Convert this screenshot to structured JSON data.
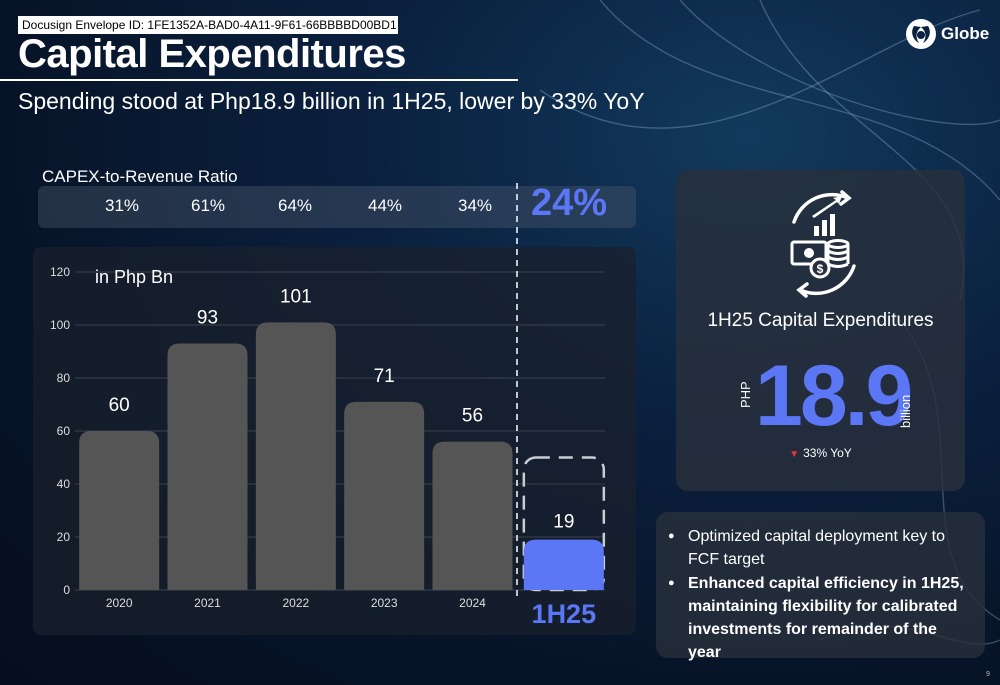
{
  "envelope_id": "Docusign Envelope ID: 1FE1352A-BAD0-4A11-9F61-66BBBBD00BD1",
  "title": "Capital Expenditures",
  "subtitle": "Spending stood at Php18.9 billion in 1H25, lower by 33% YoY",
  "logo": {
    "text": "Globe",
    "icon": "globe-logo-icon"
  },
  "ratio": {
    "title": "CAPEX-to-Revenue Ratio",
    "values": [
      "31%",
      "61%",
      "64%",
      "44%",
      "34%"
    ],
    "highlight": "24%"
  },
  "chart_data": {
    "type": "bar",
    "unit_label": "in Php Bn",
    "categories": [
      "2020",
      "2021",
      "2022",
      "2023",
      "2024",
      "1H25"
    ],
    "values": [
      60,
      93,
      101,
      71,
      56,
      19
    ],
    "highlight_category": "1H25",
    "ylim": [
      0,
      120
    ],
    "yticks": [
      0,
      20,
      40,
      60,
      80,
      100,
      120
    ],
    "grid": true,
    "colors": {
      "bar": "#555555",
      "highlight": "#5b77f5",
      "grid": "#3a4250",
      "dashed": "#c8ccd2"
    }
  },
  "kpi": {
    "icon": "capex-cash-growth-icon",
    "label": "1H25 Capital Expenditures",
    "prefix": "PHP",
    "value": "18.9",
    "unit": "billion",
    "delta": "33% YoY",
    "delta_color": "#e8333c"
  },
  "notes": [
    "Optimized capital deployment key to FCF target",
    "Enhanced capital efficiency in 1H25, maintaining flexibility for calibrated investments for remainder of the year"
  ],
  "page_number": "9"
}
